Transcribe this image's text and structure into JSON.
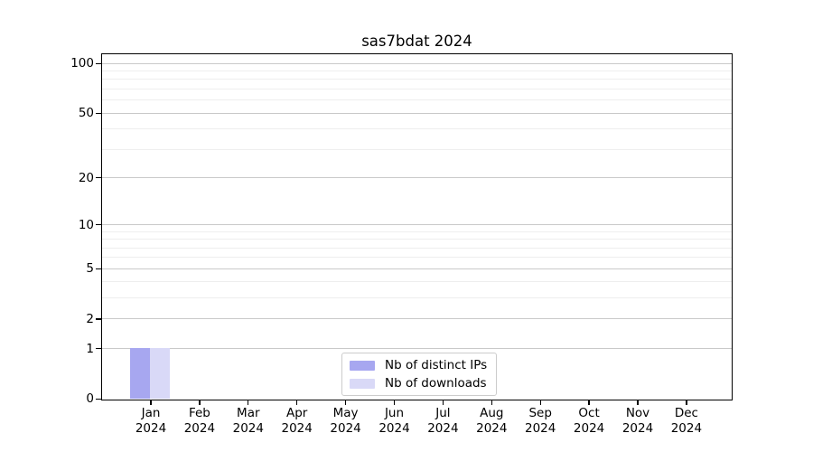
{
  "chart_data": {
    "type": "bar",
    "title": "sas7bdat 2024",
    "categories": [
      "Jan",
      "Feb",
      "Mar",
      "Apr",
      "May",
      "Jun",
      "Jul",
      "Aug",
      "Sep",
      "Oct",
      "Nov",
      "Dec"
    ],
    "category_year": "2024",
    "series": [
      {
        "name": "Nb of distinct IPs",
        "color": "#a7a7f0",
        "values": [
          1,
          0,
          0,
          0,
          0,
          0,
          0,
          0,
          0,
          0,
          0,
          0
        ]
      },
      {
        "name": "Nb of downloads",
        "color": "#d9d9f7",
        "values": [
          1,
          0,
          0,
          0,
          0,
          0,
          0,
          0,
          0,
          0,
          0,
          0
        ]
      }
    ],
    "y_axis": {
      "scale": "log1p",
      "major_ticks": [
        0,
        1,
        2,
        5,
        10,
        20,
        50,
        100
      ],
      "minor_ticks": [
        3,
        4,
        6,
        7,
        8,
        9,
        30,
        40,
        60,
        70,
        80,
        90
      ],
      "ylim": [
        0,
        113
      ]
    },
    "xlabel": "",
    "ylabel": "",
    "grid": true,
    "legend_position": "bottom-center",
    "colors": {
      "background": "#ffffff",
      "spine": "#000000",
      "major_grid": "#c9c9c9",
      "minor_grid": "#eeeeee",
      "text": "#000000",
      "legend_border": "#cccccc"
    }
  }
}
